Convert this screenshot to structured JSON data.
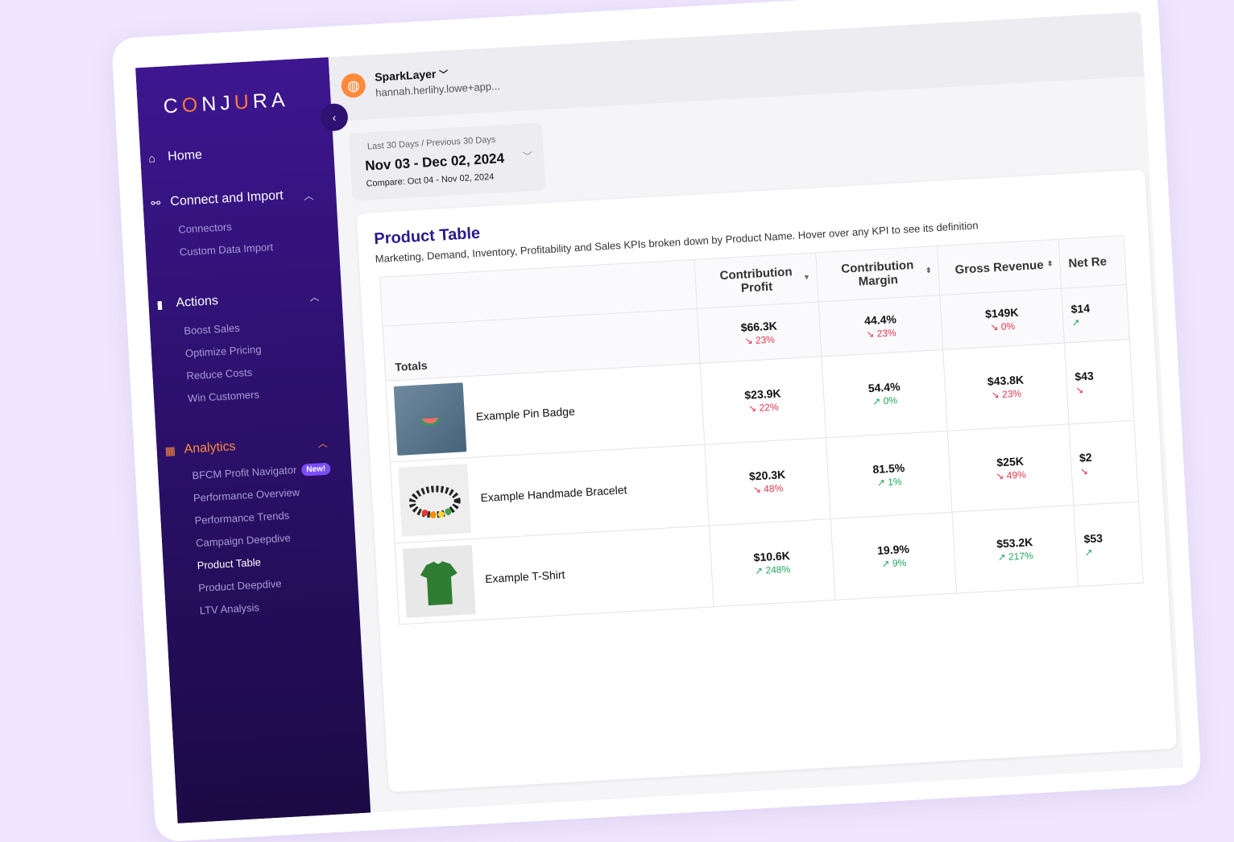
{
  "sidebar": {
    "logo": "CONJURA",
    "home": "Home",
    "connect": "Connect and Import",
    "connect_items": [
      "Connectors",
      "Custom Data Import"
    ],
    "actions": "Actions",
    "actions_items": [
      "Boost Sales",
      "Optimize Pricing",
      "Reduce Costs",
      "Win Customers"
    ],
    "analytics": "Analytics",
    "analytics_items": [
      "BFCM Profit Navigator",
      "Performance Overview",
      "Performance Trends",
      "Campaign Deepdive",
      "Product Table",
      "Product Deepdive",
      "LTV Analysis"
    ],
    "new_badge": "New!"
  },
  "topbar": {
    "org_name": "SparkLayer",
    "org_email": "hannah.herlihy.lowe+app..."
  },
  "date": {
    "label": "Last 30 Days / Previous 30 Days",
    "range": "Nov 03 - Dec 02, 2024",
    "compare": "Compare: Oct 04 - Nov 02, 2024"
  },
  "table": {
    "title": "Product Table",
    "subtitle": "Marketing, Demand, Inventory, Profitability and Sales KPIs broken down by Product Name. Hover over any KPI to see its definition",
    "headers": [
      "Contribution Profit",
      "Contribution Margin",
      "Gross Revenue",
      "Net Re"
    ],
    "totals_label": "Totals",
    "totals": [
      {
        "value": "$66.3K",
        "change": "23%",
        "dir": "down"
      },
      {
        "value": "44.4%",
        "change": "23%",
        "dir": "down"
      },
      {
        "value": "$149K",
        "change": "0%",
        "dir": "down"
      },
      {
        "value": "$14",
        "change": "",
        "dir": "up"
      }
    ],
    "rows": [
      {
        "name": "Example Pin Badge",
        "cells": [
          {
            "value": "$23.9K",
            "change": "22%",
            "dir": "down"
          },
          {
            "value": "54.4%",
            "change": "0%",
            "dir": "up"
          },
          {
            "value": "$43.8K",
            "change": "23%",
            "dir": "down"
          },
          {
            "value": "$43",
            "change": "",
            "dir": "down"
          }
        ]
      },
      {
        "name": "Example Handmade Bracelet",
        "cells": [
          {
            "value": "$20.3K",
            "change": "48%",
            "dir": "down"
          },
          {
            "value": "81.5%",
            "change": "1%",
            "dir": "up"
          },
          {
            "value": "$25K",
            "change": "49%",
            "dir": "down"
          },
          {
            "value": "$2",
            "change": "",
            "dir": "down"
          }
        ]
      },
      {
        "name": "Example T-Shirt",
        "cells": [
          {
            "value": "$10.6K",
            "change": "248%",
            "dir": "up"
          },
          {
            "value": "19.9%",
            "change": "9%",
            "dir": "up"
          },
          {
            "value": "$53.2K",
            "change": "217%",
            "dir": "up"
          },
          {
            "value": "$53",
            "change": "",
            "dir": "up"
          }
        ]
      }
    ]
  }
}
